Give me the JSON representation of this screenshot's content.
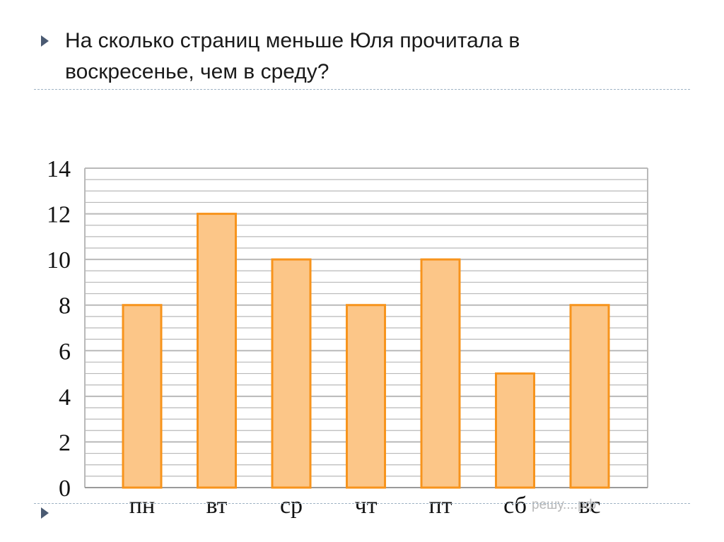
{
  "slide": {
    "question": "На сколько страниц меньше Юля прочитала в воскресенье, чем в среду?"
  },
  "watermark": "решу....рф",
  "colors": {
    "bar_fill": "#fcc688",
    "bar_stroke": "#f7941d",
    "grid": "#b9b9b9",
    "bullet": "#4a5a72",
    "rule": "#9fb3c4"
  },
  "chart_data": {
    "type": "bar",
    "categories": [
      "пн",
      "вт",
      "ср",
      "чт",
      "пт",
      "сб",
      "вс"
    ],
    "values": [
      8,
      12,
      10,
      8,
      10,
      5,
      8
    ],
    "ylim": [
      0,
      14
    ],
    "yticks": [
      0,
      2,
      4,
      6,
      8,
      10,
      12,
      14
    ],
    "minor_step": 0.5,
    "grid": true,
    "title": "",
    "xlabel": "",
    "ylabel": ""
  }
}
